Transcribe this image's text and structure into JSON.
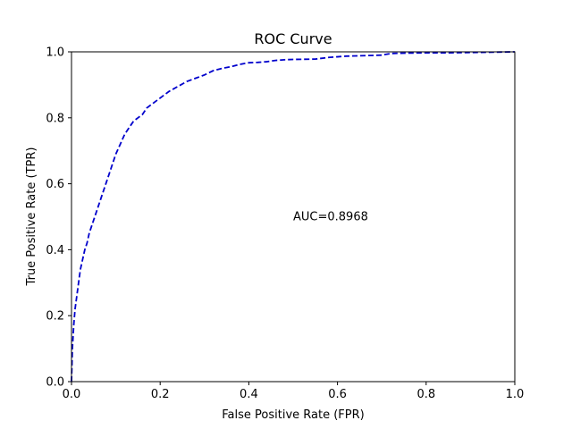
{
  "chart_data": {
    "type": "line",
    "title": "ROC Curve",
    "xlabel": "False Positive Rate (FPR)",
    "ylabel": "True Positive Rate (TPR)",
    "xlim": [
      0.0,
      1.0
    ],
    "ylim": [
      0.0,
      1.0
    ],
    "x_ticks": [
      "0.0",
      "0.2",
      "0.4",
      "0.6",
      "0.8",
      "1.0"
    ],
    "y_ticks": [
      "0.0",
      "0.2",
      "0.4",
      "0.6",
      "0.8",
      "1.0"
    ],
    "grid": false,
    "annotation": {
      "text": "AUC=0.8968",
      "x": 0.5,
      "y": 0.5
    },
    "series": [
      {
        "line_style": "dashed",
        "color": "#0000cc",
        "x": [
          0.0,
          0.002,
          0.005,
          0.008,
          0.012,
          0.016,
          0.02,
          0.025,
          0.03,
          0.035,
          0.04,
          0.045,
          0.05,
          0.055,
          0.06,
          0.065,
          0.07,
          0.075,
          0.08,
          0.085,
          0.09,
          0.095,
          0.1,
          0.11,
          0.12,
          0.13,
          0.14,
          0.15,
          0.16,
          0.17,
          0.18,
          0.2,
          0.22,
          0.24,
          0.26,
          0.28,
          0.3,
          0.32,
          0.34,
          0.36,
          0.38,
          0.4,
          0.42,
          0.44,
          0.46,
          0.48,
          0.5,
          0.55,
          0.58,
          0.6,
          0.62,
          0.65,
          0.7,
          0.72,
          0.75,
          0.8,
          0.85,
          0.9,
          0.95,
          1.0
        ],
        "y": [
          0.0,
          0.1,
          0.17,
          0.22,
          0.26,
          0.3,
          0.34,
          0.37,
          0.4,
          0.42,
          0.45,
          0.47,
          0.49,
          0.51,
          0.53,
          0.55,
          0.57,
          0.59,
          0.61,
          0.63,
          0.65,
          0.67,
          0.69,
          0.72,
          0.75,
          0.77,
          0.79,
          0.8,
          0.81,
          0.83,
          0.84,
          0.86,
          0.88,
          0.895,
          0.91,
          0.92,
          0.93,
          0.943,
          0.95,
          0.955,
          0.962,
          0.967,
          0.968,
          0.97,
          0.974,
          0.976,
          0.977,
          0.978,
          0.983,
          0.985,
          0.987,
          0.988,
          0.99,
          0.995,
          0.996,
          0.997,
          0.997,
          0.998,
          0.999,
          1.0
        ]
      }
    ]
  }
}
